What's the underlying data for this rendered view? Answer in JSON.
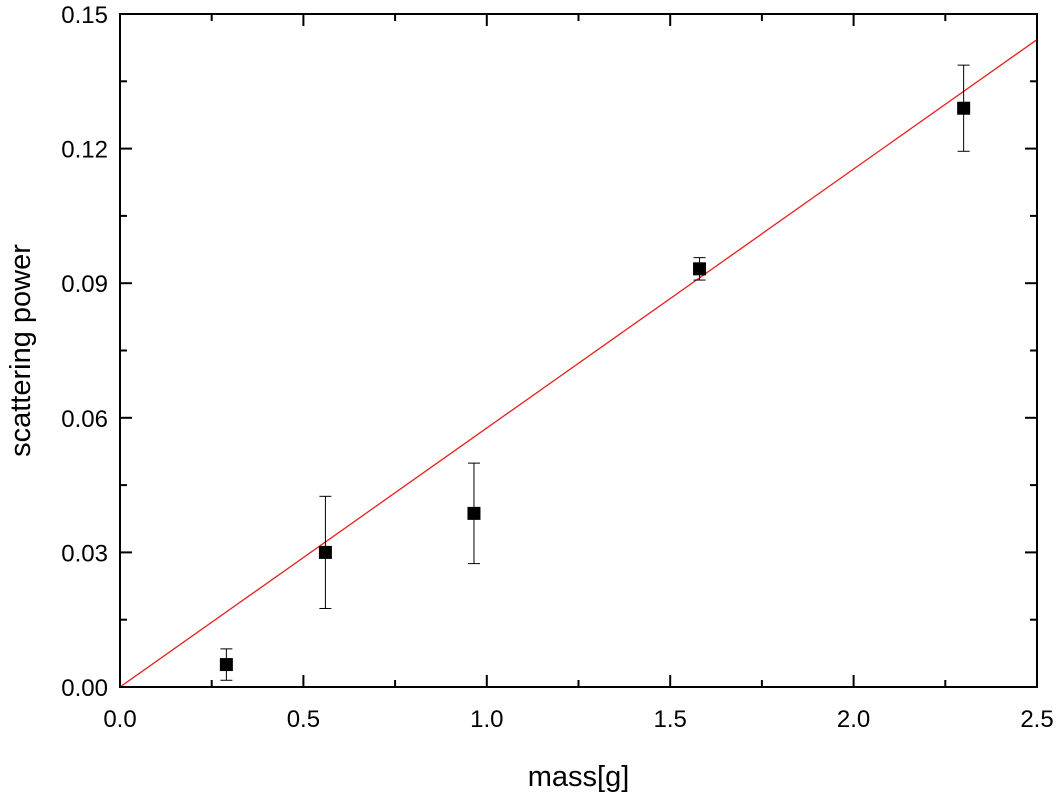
{
  "chart_data": {
    "type": "scatter",
    "title": "",
    "xlabel": "mass[g]",
    "ylabel": "scattering power",
    "xlim": [
      0.0,
      2.5
    ],
    "ylim": [
      0.0,
      0.15
    ],
    "x_ticks": [
      "0.0",
      "0.5",
      "1.0",
      "1.5",
      "2.0",
      "2.5"
    ],
    "y_ticks": [
      "0.00",
      "0.03",
      "0.06",
      "0.09",
      "0.12",
      "0.15"
    ],
    "grid": false,
    "legend": "none",
    "series": [
      {
        "type": "scatter",
        "marker": "square",
        "color": "#000000",
        "x": [
          0.29,
          0.56,
          0.965,
          1.58,
          2.3
        ],
        "y": [
          0.005,
          0.03,
          0.0387,
          0.0932,
          0.129
        ],
        "y_err": [
          0.0035,
          0.0125,
          0.0112,
          0.0025,
          0.0096
        ]
      },
      {
        "type": "line",
        "fit": "linear",
        "color": "#e8201c",
        "x": [
          0.0,
          2.5
        ],
        "y": [
          0.0,
          0.1443
        ]
      }
    ]
  }
}
